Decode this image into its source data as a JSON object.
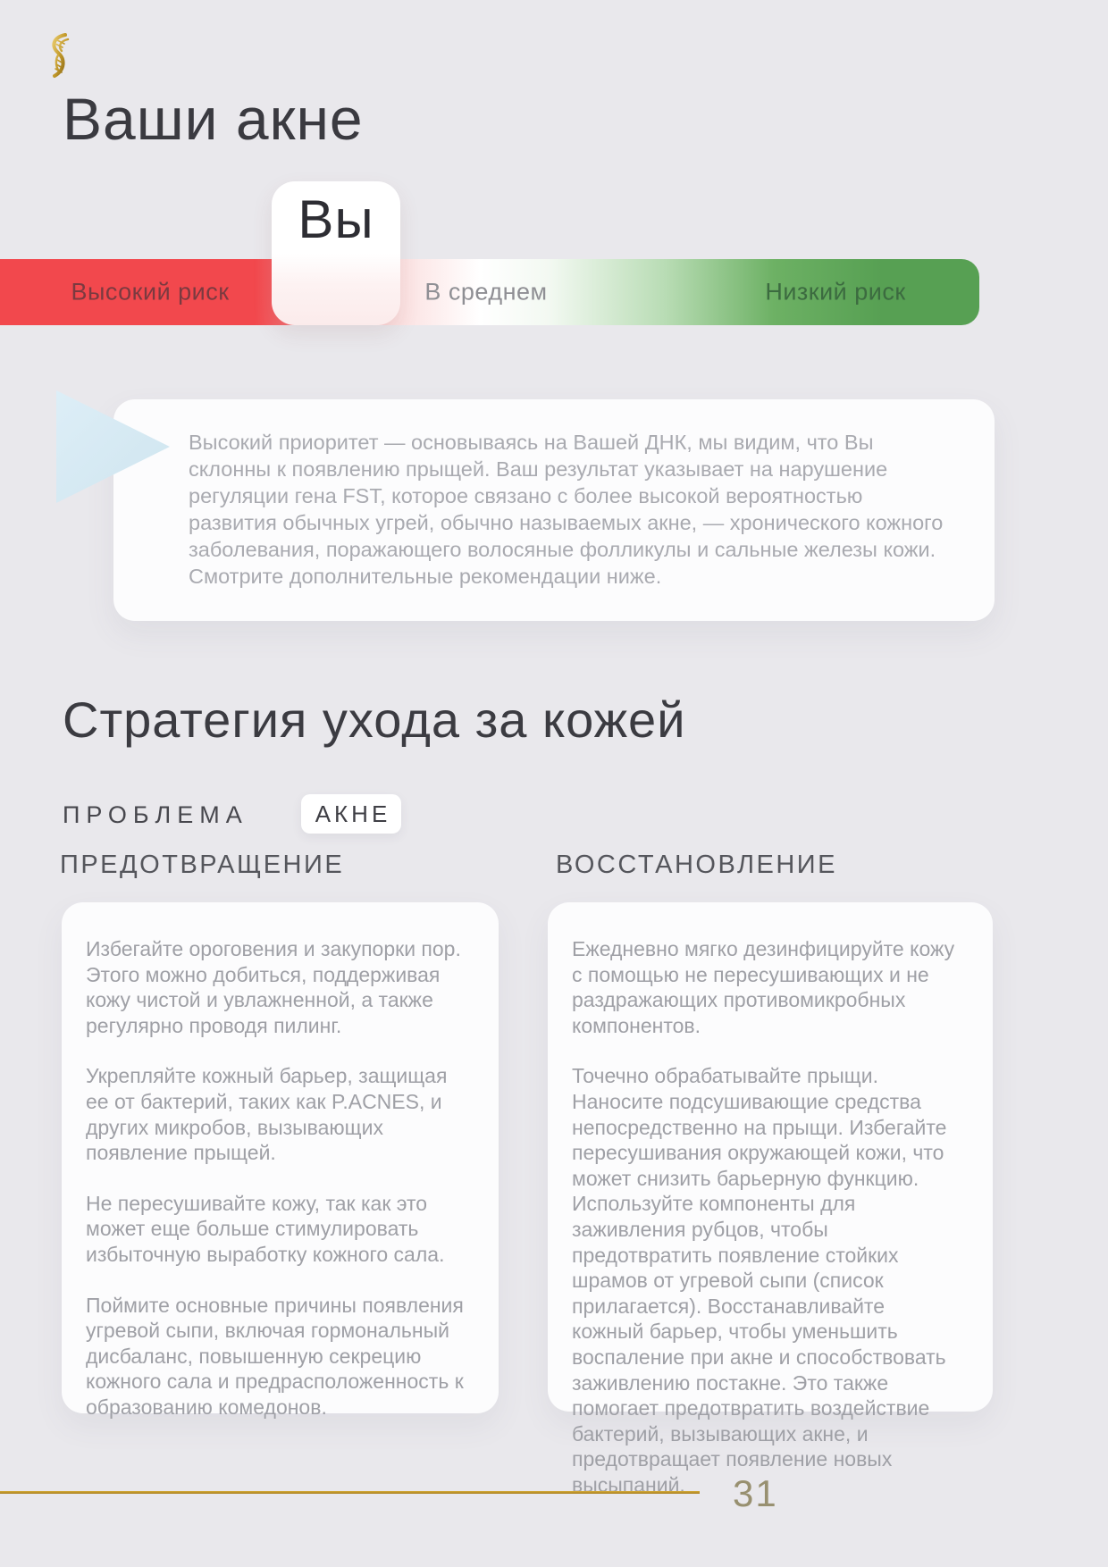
{
  "page": {
    "title": "Ваши акне",
    "background_color": "#e9e8ec"
  },
  "icons": {
    "logo": "dna-helix-icon",
    "callout": "triangle-right-icon"
  },
  "risk_scale": {
    "marker_label": "Вы",
    "high_label": "Высокий риск",
    "mid_label": "В среднем",
    "low_label": "Низкий риск",
    "high_color": "#f2484d",
    "low_color": "#57a053"
  },
  "callout": {
    "text": "Высокий приоритет — основываясь на Вашей ДНК, мы видим, что Вы склонны к появлению прыщей. Ваш результат указывает на нарушение регуляции гена FST, которое связано с более высокой вероятностью развития обычных угрей, обычно называемых акне, — хронического кожного заболевания, поражающего волосяные фолликулы и сальные железы кожи. Смотрите дополнительные рекомендации ниже."
  },
  "strategy": {
    "title": "Стратегия ухода за кожей",
    "problem_label": "ПРОБЛЕМА",
    "problem_value": "АКНЕ",
    "columns": [
      {
        "header": "ПРЕДОТВРАЩЕНИЕ",
        "paragraphs": [
          "Избегайте ороговения и закупорки пор. Этого можно добиться, поддерживая кожу чистой и увлажненной, а также регулярно проводя пилинг.",
          "Укрепляйте кожный барьер, защищая ее от бактерий, таких как P.ACNES, и других микробов, вызывающих появление прыщей.",
          "Не пересушивайте кожу, так как это может еще больше стимулировать избыточную выработку кожного сала.",
          "Поймите основные причины появления угревой сыпи, включая гормональный дисбаланс, повышенную секрецию кожного сала и предрасположенность к образованию комедонов."
        ]
      },
      {
        "header": "ВОССТАНОВЛЕНИЕ",
        "paragraphs": [
          "Ежедневно мягко дезинфицируйте кожу с помощью не пересушивающих и не раздражающих противомикробных компонентов.",
          "Точечно обрабатывайте прыщи. Наносите подсушивающие средства непосредственно на прыщи. Избегайте пересушивания окружающей кожи, что может снизить барьерную функцию. Используйте компоненты для заживления рубцов, чтобы предотвратить появление стойких шрамов от угревой сыпи (список прилагается). Восстанавливайте кожный барьер, чтобы уменьшить воспаление при акне и способствовать заживлению постакне. Это также помогает предотвратить воздействие бактерий, вызывающих акне, и предотвращает появление новых высыпаний."
        ]
      }
    ]
  },
  "footer": {
    "page_number": "31",
    "accent_color": "#b58b1d"
  }
}
